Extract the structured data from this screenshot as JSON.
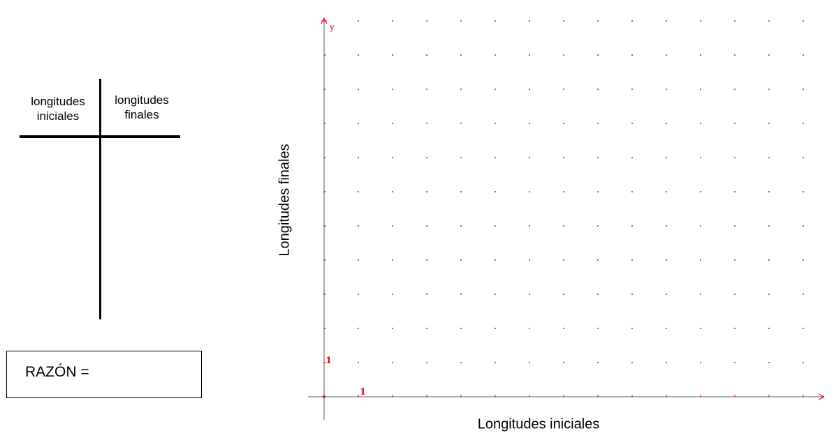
{
  "t_table": {
    "header_left": "longitudes iniciales",
    "header_right": "longitudes finales"
  },
  "razon": {
    "label": "RAZÓN ="
  },
  "graph": {
    "y_axis_title": "Longitudes finales",
    "x_axis_title": "Longitudes iniciales",
    "y_axis_letter": "y",
    "x_tick_label": "1",
    "y_tick_label": "1",
    "x_range": [
      0,
      14
    ],
    "y_range": [
      0,
      11
    ],
    "axis_color": "#e8001c",
    "dot_color": "#6e6e6e"
  }
}
